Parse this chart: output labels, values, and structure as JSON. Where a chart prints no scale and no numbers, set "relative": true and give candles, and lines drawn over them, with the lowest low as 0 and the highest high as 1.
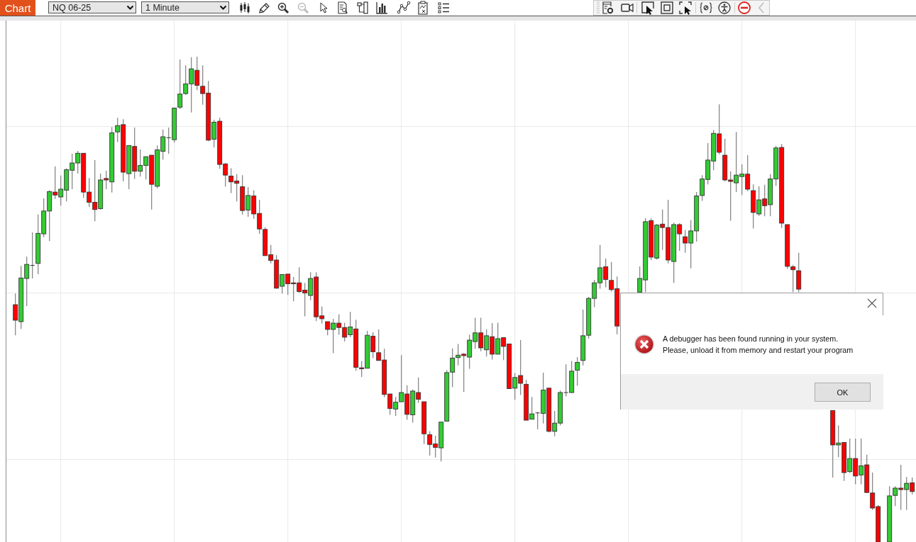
{
  "chart_data": {
    "type": "candlestick",
    "relative": true,
    "grid": true,
    "annotations": [
      "Chart",
      "NQ 06-25",
      "1 Minute",
      "A debugger has been found running in your system.",
      "Please, unload it from memory and restart your program",
      "OK"
    ],
    "categories": [
      null,
      null,
      null,
      null,
      null,
      null,
      null,
      null,
      null,
      null,
      null,
      null,
      null,
      null,
      null,
      null,
      null,
      null,
      null,
      null,
      null,
      null,
      null,
      null,
      null,
      null,
      null,
      null,
      null,
      null,
      null,
      null,
      null,
      null,
      null,
      null,
      null,
      null,
      null,
      null,
      null,
      null,
      null,
      null,
      null,
      null,
      null,
      null,
      null,
      null,
      null,
      null,
      null,
      null,
      null,
      null,
      null,
      null,
      null,
      null,
      null,
      null,
      null,
      null,
      null,
      null,
      null,
      null,
      null,
      null,
      null,
      null,
      null,
      null,
      null,
      null,
      null,
      null,
      null,
      null,
      null,
      null,
      null,
      null,
      null,
      null,
      null,
      null,
      null,
      null,
      null,
      null,
      null,
      null,
      null,
      null,
      null,
      null,
      null,
      null,
      null,
      null,
      null,
      null,
      null,
      null,
      null,
      null,
      null,
      null,
      null,
      null,
      null,
      null,
      null,
      null,
      null,
      null,
      null,
      null,
      null,
      null,
      null,
      null,
      null,
      null,
      null,
      null,
      null,
      null,
      null,
      null,
      null,
      null,
      null,
      null,
      null,
      null,
      null,
      null,
      null,
      null,
      null,
      null,
      null,
      null,
      null,
      null,
      null,
      null,
      null,
      null,
      null,
      null,
      null,
      null,
      null,
      null,
      null
    ],
    "ohlc": [
      [
        0.489,
        0.512,
        0.426,
        0.457
      ],
      [
        0.454,
        0.569,
        0.439,
        0.544
      ],
      [
        0.543,
        0.588,
        0.486,
        0.572
      ],
      [
        0.57,
        0.638,
        0.543,
        0.57
      ],
      [
        0.574,
        0.675,
        0.552,
        0.636
      ],
      [
        0.635,
        0.708,
        0.628,
        0.682
      ],
      [
        0.682,
        0.725,
        0.62,
        0.722
      ],
      [
        0.721,
        0.774,
        0.707,
        0.715
      ],
      [
        0.711,
        0.755,
        0.693,
        0.727
      ],
      [
        0.725,
        0.77,
        0.702,
        0.767
      ],
      [
        0.766,
        0.8,
        0.727,
        0.781
      ],
      [
        0.781,
        0.806,
        0.759,
        0.801
      ],
      [
        0.801,
        0.801,
        0.709,
        0.721
      ],
      [
        0.721,
        0.75,
        0.69,
        0.7
      ],
      [
        0.7,
        0.787,
        0.661,
        0.685
      ],
      [
        0.687,
        0.759,
        0.685,
        0.746
      ],
      [
        0.749,
        0.765,
        0.727,
        0.746
      ],
      [
        0.742,
        0.855,
        0.72,
        0.843
      ],
      [
        0.845,
        0.874,
        0.824,
        0.858
      ],
      [
        0.86,
        0.871,
        0.743,
        0.762
      ],
      [
        0.759,
        0.817,
        0.727,
        0.817
      ],
      [
        0.815,
        0.854,
        0.748,
        0.764
      ],
      [
        0.764,
        0.809,
        0.753,
        0.776
      ],
      [
        0.776,
        0.794,
        0.747,
        0.794
      ],
      [
        0.797,
        0.797,
        0.685,
        0.737
      ],
      [
        0.733,
        0.817,
        0.729,
        0.808
      ],
      [
        0.805,
        0.85,
        0.788,
        0.835
      ],
      [
        0.833,
        0.854,
        0.8,
        0.833
      ],
      [
        0.829,
        0.894,
        0.823,
        0.894
      ],
      [
        0.896,
        0.994,
        0.892,
        0.923
      ],
      [
        0.924,
        0.982,
        0.921,
        0.944
      ],
      [
        0.944,
        0.999,
        0.885,
        0.975
      ],
      [
        0.972,
        1,
        0.931,
        0.941
      ],
      [
        0.939,
        0.982,
        0.901,
        0.924
      ],
      [
        0.925,
        0.95,
        0.826,
        0.828
      ],
      [
        0.83,
        0.87,
        0.813,
        0.865
      ],
      [
        0.867,
        0.874,
        0.769,
        0.778
      ],
      [
        0.779,
        0.781,
        0.732,
        0.756
      ],
      [
        0.754,
        0.77,
        0.719,
        0.742
      ],
      [
        0.744,
        0.758,
        0.702,
        0.739
      ],
      [
        0.732,
        0.756,
        0.675,
        0.683
      ],
      [
        0.684,
        0.731,
        0.67,
        0.714
      ],
      [
        0.713,
        0.725,
        0.666,
        0.676
      ],
      [
        0.677,
        0.705,
        0.635,
        0.645
      ],
      [
        0.644,
        0.648,
        0.59,
        0.59
      ],
      [
        0.592,
        0.612,
        0.574,
        0.58
      ],
      [
        0.581,
        0.591,
        0.522,
        0.523
      ],
      [
        0.527,
        0.551,
        0.512,
        0.551
      ],
      [
        0.552,
        0.552,
        0.509,
        0.532
      ],
      [
        0.534,
        0.546,
        0.496,
        0.532
      ],
      [
        0.534,
        0.566,
        0.513,
        0.516
      ],
      [
        0.519,
        0.534,
        0.465,
        0.513
      ],
      [
        0.508,
        0.556,
        0.498,
        0.543
      ],
      [
        0.546,
        0.556,
        0.455,
        0.464
      ],
      [
        0.466,
        0.485,
        0.45,
        0.46
      ],
      [
        0.454,
        0.454,
        0.426,
        0.438
      ],
      [
        0.438,
        0.46,
        0.389,
        0.451
      ],
      [
        0.451,
        0.469,
        0.427,
        0.442
      ],
      [
        0.442,
        0.452,
        0.413,
        0.422
      ],
      [
        0.427,
        0.474,
        0.422,
        0.443
      ],
      [
        0.439,
        0.458,
        0.353,
        0.36
      ],
      [
        0.359,
        0.373,
        0.34,
        0.357
      ],
      [
        0.358,
        0.435,
        0.358,
        0.426
      ],
      [
        0.424,
        0.432,
        0.379,
        0.392
      ],
      [
        0.39,
        0.438,
        0.374,
        0.374
      ],
      [
        0.375,
        0.398,
        0.298,
        0.304
      ],
      [
        0.305,
        0.305,
        0.262,
        0.275
      ],
      [
        0.274,
        0.299,
        0.26,
        0.288
      ],
      [
        0.289,
        0.385,
        0.289,
        0.308
      ],
      [
        0.305,
        0.323,
        0.252,
        0.263
      ],
      [
        0.262,
        0.314,
        0.246,
        0.311
      ],
      [
        0.308,
        0.339,
        0.287,
        0.294
      ],
      [
        0.289,
        0.289,
        0.202,
        0.223
      ],
      [
        0.221,
        0.228,
        0.178,
        0.201
      ],
      [
        0.202,
        0.219,
        0.174,
        0.195
      ],
      [
        0.194,
        0.247,
        0.166,
        0.247
      ],
      [
        0.249,
        0.354,
        0.249,
        0.349
      ],
      [
        0.35,
        0.399,
        0.319,
        0.379
      ],
      [
        0.38,
        0.408,
        0.364,
        0.385
      ],
      [
        0.387,
        0.389,
        0.309,
        0.384
      ],
      [
        0.381,
        0.427,
        0.357,
        0.416
      ],
      [
        0.413,
        0.462,
        0.398,
        0.431
      ],
      [
        0.431,
        0.462,
        0.393,
        0.4
      ],
      [
        0.396,
        0.438,
        0.382,
        0.425
      ],
      [
        0.423,
        0.451,
        0.376,
        0.387
      ],
      [
        0.387,
        0.452,
        0.387,
        0.419
      ],
      [
        0.421,
        0.421,
        0.375,
        0.403
      ],
      [
        0.408,
        0.408,
        0.316,
        0.316
      ],
      [
        0.317,
        0.348,
        0.293,
        0.339
      ],
      [
        0.343,
        0.416,
        0.303,
        0.327
      ],
      [
        0.325,
        0.334,
        0.251,
        0.251
      ],
      [
        0.253,
        0.299,
        0.253,
        0.264
      ],
      [
        0.266,
        0.268,
        0.232,
        0.266
      ],
      [
        0.265,
        0.349,
        0.244,
        0.313
      ],
      [
        0.317,
        0.317,
        0.226,
        0.228
      ],
      [
        0.228,
        0.27,
        0.218,
        0.245
      ],
      [
        0.245,
        0.312,
        0.24,
        0.308
      ],
      [
        0.308,
        0.366,
        0.3,
        0.308
      ],
      [
        0.308,
        0.373,
        0.307,
        0.352
      ],
      [
        0.354,
        0.381,
        0.322,
        0.37
      ],
      [
        0.374,
        0.479,
        0.364,
        0.425
      ],
      [
        0.426,
        0.505,
        0.419,
        0.502
      ],
      [
        0.502,
        0.54,
        0.484,
        0.534
      ],
      [
        0.534,
        0.612,
        0.522,
        0.565
      ],
      [
        0.567,
        0.584,
        0.525,
        0.541
      ],
      [
        0.539,
        0.577,
        0.516,
        0.52
      ],
      [
        0.522,
        0.547,
        0.428,
        0.445
      ],
      null,
      null,
      null,
      [
        0.515,
        0.568,
        0.515,
        0.543
      ],
      [
        0.54,
        0.667,
        0.515,
        0.66
      ],
      [
        0.662,
        0.667,
        0.581,
        0.587
      ],
      [
        0.585,
        0.655,
        0.582,
        0.653
      ],
      [
        0.655,
        0.685,
        0.602,
        0.648
      ],
      [
        0.648,
        0.705,
        0.574,
        0.581
      ],
      [
        0.578,
        0.658,
        0.534,
        0.654
      ],
      [
        0.654,
        0.657,
        0.6,
        0.635
      ],
      [
        0.629,
        0.643,
        0.596,
        0.616
      ],
      [
        0.616,
        0.663,
        0.564,
        0.641
      ],
      [
        0.641,
        0.721,
        0.619,
        0.713
      ],
      [
        0.714,
        0.756,
        0.703,
        0.748
      ],
      [
        0.747,
        0.822,
        0.737,
        0.787
      ],
      [
        0.785,
        0.849,
        0.766,
        0.842
      ],
      [
        0.841,
        0.902,
        0.799,
        0.803
      ],
      [
        0.797,
        0.831,
        0.743,
        0.746
      ],
      [
        0.746,
        0.764,
        0.662,
        0.743
      ],
      [
        0.74,
        0.845,
        0.721,
        0.756
      ],
      [
        0.753,
        0.778,
        0.715,
        0.758
      ],
      [
        0.758,
        0.797,
        0.723,
        0.727
      ],
      [
        0.724,
        0.737,
        0.646,
        0.679
      ],
      [
        0.676,
        0.733,
        0.672,
        0.705
      ],
      [
        0.707,
        0.736,
        0.671,
        0.693
      ],
      [
        0.695,
        0.758,
        0.671,
        0.748
      ],
      [
        0.748,
        0.816,
        0.734,
        0.812
      ],
      [
        0.813,
        0.82,
        0.647,
        0.657
      ],
      [
        0.654,
        0.654,
        0.563,
        0.568
      ],
      [
        0.567,
        0.571,
        0.515,
        0.561
      ],
      [
        0.559,
        0.596,
        0.515,
        0.521
      ],
      null,
      null,
      null,
      null,
      null,
      [
        0.271,
        0.271,
        0.133,
        0.2
      ],
      [
        0.2,
        0.24,
        0.175,
        0.204
      ],
      [
        0.205,
        0.205,
        0.126,
        0.143
      ],
      [
        0.145,
        0.213,
        0.142,
        0.172
      ],
      [
        0.172,
        0.213,
        0.119,
        0.136
      ],
      [
        0.138,
        0.213,
        0.119,
        0.157
      ],
      [
        0.159,
        0.18,
        0.101,
        0.102
      ],
      [
        0.101,
        0.143,
        0.066,
        0.07
      ],
      [
        0.073,
        0.076,
        0,
        0
      ],
      null,
      [
        0,
        0.115,
        0,
        0.095
      ],
      [
        0.096,
        0.115,
        0.074,
        0.111
      ],
      [
        0.111,
        0.159,
        0.066,
        0.108
      ],
      [
        0.108,
        0.134,
        0.066,
        0.121
      ],
      [
        0.122,
        0.133,
        0.098,
        0.104
      ]
    ],
    "colors": [
      "#ff0000",
      "#33cc33",
      "#33cc33",
      "#333333",
      "#33cc33",
      "#33cc33",
      "#33cc33",
      "#ff0000",
      "#33cc33",
      "#33cc33",
      "#33cc33",
      "#33cc33",
      "#ff0000",
      "#ff0000",
      "#ff0000",
      "#33cc33",
      "#ff0000",
      "#33cc33",
      "#33cc33",
      "#ff0000",
      "#33cc33",
      "#ff0000",
      "#33cc33",
      "#33cc33",
      "#ff0000",
      "#33cc33",
      "#33cc33",
      "#333333",
      "#33cc33",
      "#33cc33",
      "#33cc33",
      "#33cc33",
      "#ff0000",
      "#ff0000",
      "#ff0000",
      "#33cc33",
      "#ff0000",
      "#ff0000",
      "#ff0000",
      "#ff0000",
      "#ff0000",
      "#33cc33",
      "#ff0000",
      "#ff0000",
      "#ff0000",
      "#ff0000",
      "#ff0000",
      "#33cc33",
      "#ff0000",
      "#ff0000",
      "#ff0000",
      "#ff0000",
      "#33cc33",
      "#ff0000",
      "#ff0000",
      "#ff0000",
      "#33cc33",
      "#ff0000",
      "#ff0000",
      "#33cc33",
      "#ff0000",
      "#ff0000",
      "#33cc33",
      "#ff0000",
      "#ff0000",
      "#ff0000",
      "#ff0000",
      "#33cc33",
      "#33cc33",
      "#ff0000",
      "#33cc33",
      "#ff0000",
      "#ff0000",
      "#ff0000",
      "#ff0000",
      "#33cc33",
      "#33cc33",
      "#33cc33",
      "#33cc33",
      "#ff0000",
      "#33cc33",
      "#33cc33",
      "#ff0000",
      "#33cc33",
      "#ff0000",
      "#33cc33",
      "#ff0000",
      "#ff0000",
      "#33cc33",
      "#ff0000",
      "#ff0000",
      "#33cc33",
      "#333333",
      "#33cc33",
      "#ff0000",
      "#33cc33",
      "#33cc33",
      "#333333",
      "#33cc33",
      "#33cc33",
      "#33cc33",
      "#33cc33",
      "#33cc33",
      "#33cc33",
      "#ff0000",
      "#ff0000",
      "#ff0000",
      null,
      null,
      null,
      "#33cc33",
      "#33cc33",
      "#ff0000",
      "#33cc33",
      "#ff0000",
      "#ff0000",
      "#33cc33",
      "#ff0000",
      "#ff0000",
      "#33cc33",
      "#33cc33",
      "#33cc33",
      "#33cc33",
      "#33cc33",
      "#ff0000",
      "#ff0000",
      "#ff0000",
      "#33cc33",
      "#33cc33",
      "#ff0000",
      "#ff0000",
      "#33cc33",
      "#ff0000",
      "#33cc33",
      "#33cc33",
      "#ff0000",
      "#ff0000",
      "#ff0000",
      "#ff0000",
      null,
      null,
      null,
      null,
      null,
      "#ff0000",
      "#33cc33",
      "#ff0000",
      "#33cc33",
      "#ff0000",
      "#33cc33",
      "#ff0000",
      "#ff0000",
      "#ff0000",
      null,
      "#33cc33",
      "#33cc33",
      "#ff0000",
      "#33cc33",
      "#ff0000"
    ]
  }
}
